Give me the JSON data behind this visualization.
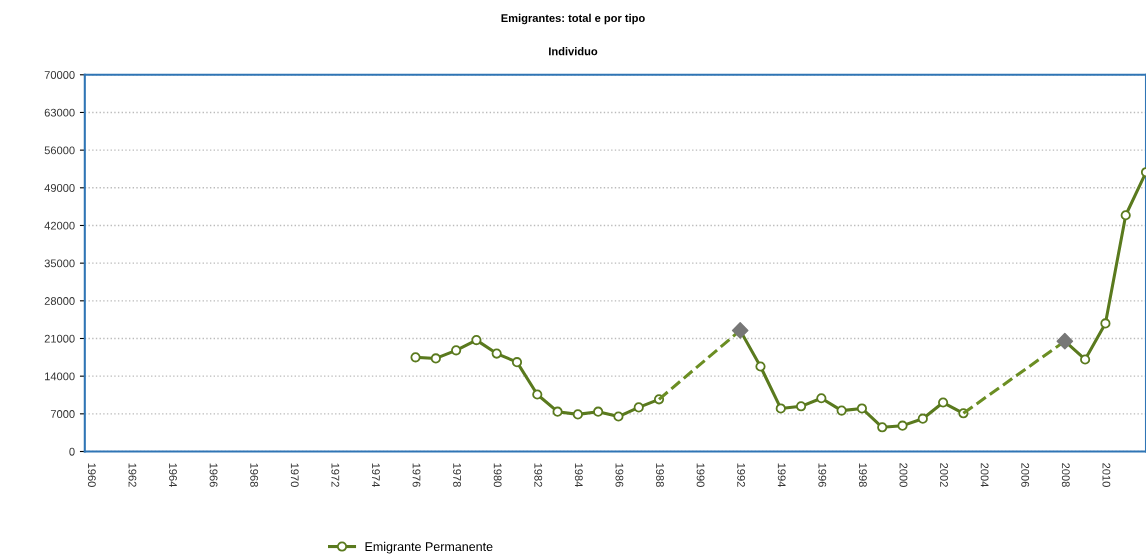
{
  "chart_data": {
    "type": "line",
    "title": "Emigrantes: total e por tipo",
    "subtitle": "Individuo",
    "x": [
      1976,
      1977,
      1978,
      1979,
      1980,
      1981,
      1982,
      1983,
      1984,
      1985,
      1986,
      1987,
      1988,
      1989,
      1990,
      1991,
      1992,
      1993,
      1994,
      1995,
      1996,
      1997,
      1998,
      1999,
      2000,
      2001,
      2002,
      2003,
      2004,
      2005,
      2006,
      2007,
      2008,
      2009,
      2010,
      2011,
      2012
    ],
    "series": [
      {
        "name": "Emigrante Permanente",
        "color": "#5a7a1e",
        "marker": "circle",
        "line_style": "solid",
        "values": [
          17500,
          17300,
          18800,
          20700,
          18200,
          16600,
          10600,
          7400,
          6900,
          7400,
          6500,
          8200,
          9700,
          null,
          null,
          null,
          22500,
          15800,
          8000,
          8400,
          9900,
          7600,
          8000,
          4500,
          4800,
          6100,
          9100,
          7100,
          null,
          null,
          null,
          null,
          20500,
          17100,
          23800,
          43900,
          51900
        ]
      },
      {
        "type": "line",
        "color": "#6b8e23",
        "marker": "none",
        "line_style": "dashed",
        "x": [
          1988,
          1992,
          2000,
          2003,
          2008
        ],
        "values": [
          9700,
          22500,
          null,
          7100,
          20500
        ]
      },
      {
        "type": "scatter",
        "color": "#777777",
        "marker": "diamond",
        "x": [
          1992,
          2008
        ],
        "values": [
          22500,
          20500
        ]
      }
    ],
    "xlim": [
      1959.7,
      2012
    ],
    "xticks": [
      1960,
      1962,
      1964,
      1966,
      1968,
      1970,
      1972,
      1974,
      1976,
      1978,
      1980,
      1982,
      1984,
      1986,
      1988,
      1990,
      1992,
      1994,
      1996,
      1998,
      2000,
      2002,
      2004,
      2006,
      2008,
      2010
    ],
    "ylim": [
      0,
      70000
    ],
    "yticks": [
      0,
      7000,
      14000,
      21000,
      28000,
      35000,
      42000,
      49000,
      56000,
      63000,
      70000
    ],
    "grid": "y",
    "legend": "bottom"
  }
}
